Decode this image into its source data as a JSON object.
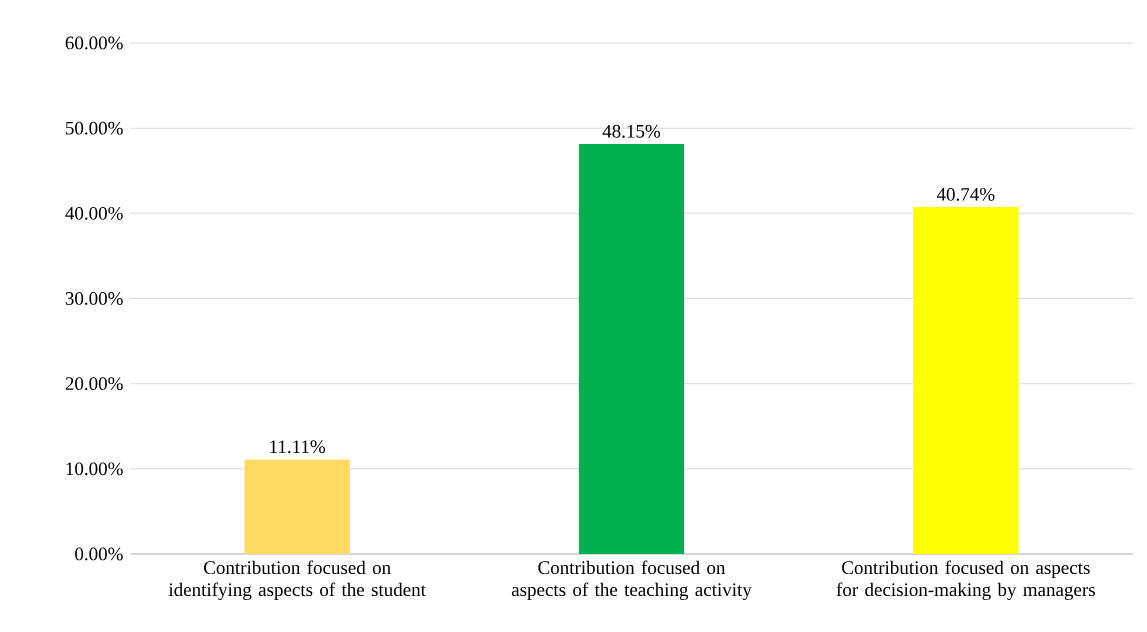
{
  "chart_data": {
    "type": "bar",
    "categories": [
      "Contribution focused on identifying aspects of the student",
      "Contribution focused on aspects of the teaching activity",
      "Contribution focused on aspects for decision-making by managers"
    ],
    "values": [
      11.11,
      48.15,
      40.74
    ],
    "colors": [
      "#ffd966",
      "#00b050",
      "#ffff00"
    ],
    "value_labels": [
      "11.11%",
      "48.15%",
      "40.74%"
    ],
    "ylim": [
      0,
      60
    ],
    "yticks": [
      {
        "value": 0,
        "label": "0.00%"
      },
      {
        "value": 10,
        "label": "10.00%"
      },
      {
        "value": 20,
        "label": "20.00%"
      },
      {
        "value": 30,
        "label": "30.00%"
      },
      {
        "value": 40,
        "label": "40.00%"
      },
      {
        "value": 50,
        "label": "50.00%"
      },
      {
        "value": 60,
        "label": "60.00%"
      }
    ],
    "grid": "y"
  }
}
